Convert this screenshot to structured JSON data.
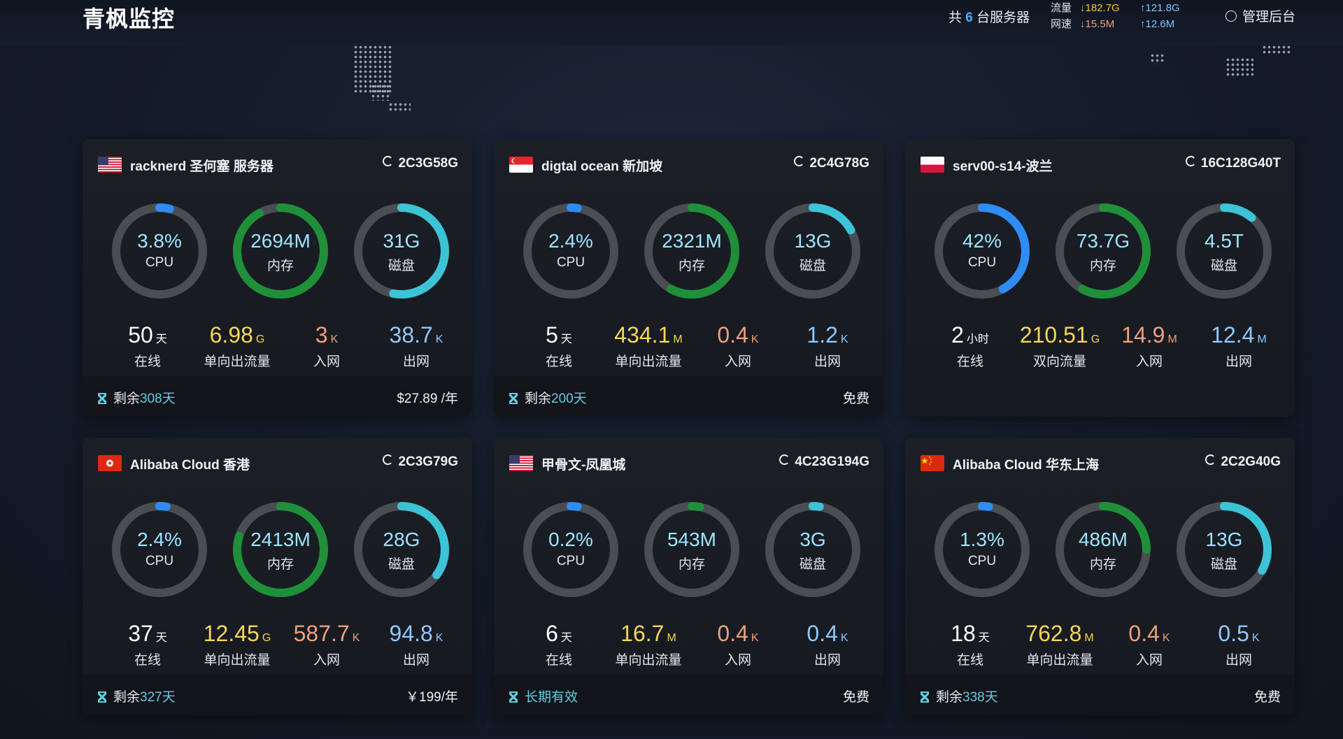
{
  "app": {
    "title": "青枫监控"
  },
  "header": {
    "summary_prefix": "共",
    "server_count": "6",
    "summary_suffix": "台服务器",
    "traffic_label": "流量",
    "traffic_down": "↓182.7G",
    "traffic_up": "↑121.8G",
    "speed_label": "网速",
    "speed_down": "↓15.5M",
    "speed_up": "↑12.6M",
    "admin_label": "管理后台"
  },
  "colors": {
    "cpu": "#2f8cf5",
    "mem": "#1f8f3a",
    "disk": "#3cc3d6",
    "track": "#4a4d52"
  },
  "servers": [
    {
      "flag": "us",
      "title": "racknerd 圣何塞 服务器",
      "spec": "2C3G58G",
      "cpu_value": "3.8%",
      "cpu_label": "CPU",
      "cpu_pct": 3.8,
      "mem_value": "2694M",
      "mem_label": "内存",
      "mem_pct": 92,
      "disk_value": "31G",
      "disk_label": "磁盘",
      "disk_pct": 53,
      "uptime_num": "50",
      "uptime_unit": "天",
      "uptime_label": "在线",
      "traffic_num": "6.98",
      "traffic_unit": "G",
      "traffic_label": "单向出流量",
      "in_num": "3",
      "in_unit": "K",
      "in_label": "入网",
      "out_num": "38.7",
      "out_unit": "K",
      "out_label": "出网",
      "remain_prefix": "剩余",
      "remain_days": "308天",
      "price": "$27.89 /年"
    },
    {
      "flag": "sg",
      "title": "digtal ocean 新加坡",
      "spec": "2C4G78G",
      "cpu_value": "2.4%",
      "cpu_label": "CPU",
      "cpu_pct": 2.4,
      "mem_value": "2321M",
      "mem_label": "内存",
      "mem_pct": 58,
      "disk_value": "13G",
      "disk_label": "磁盘",
      "disk_pct": 17,
      "uptime_num": "5",
      "uptime_unit": "天",
      "uptime_label": "在线",
      "traffic_num": "434.1",
      "traffic_unit": "M",
      "traffic_label": "单向出流量",
      "in_num": "0.4",
      "in_unit": "K",
      "in_label": "入网",
      "out_num": "1.2",
      "out_unit": "K",
      "out_label": "出网",
      "remain_prefix": "剩余",
      "remain_days": "200天",
      "price": "免费"
    },
    {
      "flag": "pl",
      "title": "serv00-s14-波兰",
      "spec": "16C128G40T",
      "cpu_value": "42%",
      "cpu_label": "CPU",
      "cpu_pct": 42,
      "mem_value": "73.7G",
      "mem_label": "内存",
      "mem_pct": 58,
      "disk_value": "4.5T",
      "disk_label": "磁盘",
      "disk_pct": 11,
      "uptime_num": "2",
      "uptime_unit": "小时",
      "uptime_label": "在线",
      "traffic_num": "210.51",
      "traffic_unit": "G",
      "traffic_label": "双向流量",
      "in_num": "14.9",
      "in_unit": "M",
      "in_label": "入网",
      "out_num": "12.4",
      "out_unit": "M",
      "out_label": "出网",
      "remain_prefix": "",
      "remain_days": "",
      "price": ""
    },
    {
      "flag": "hk",
      "title": "Alibaba Cloud 香港",
      "spec": "2C3G79G",
      "cpu_value": "2.4%",
      "cpu_label": "CPU",
      "cpu_pct": 2.4,
      "mem_value": "2413M",
      "mem_label": "内存",
      "mem_pct": 80,
      "disk_value": "28G",
      "disk_label": "磁盘",
      "disk_pct": 35,
      "uptime_num": "37",
      "uptime_unit": "天",
      "uptime_label": "在线",
      "traffic_num": "12.45",
      "traffic_unit": "G",
      "traffic_label": "单向出流量",
      "in_num": "587.7",
      "in_unit": "K",
      "in_label": "入网",
      "out_num": "94.8",
      "out_unit": "K",
      "out_label": "出网",
      "remain_prefix": "剩余",
      "remain_days": "327天",
      "price": "￥199/年"
    },
    {
      "flag": "us",
      "title": "甲骨文-凤凰城",
      "spec": "4C23G194G",
      "cpu_value": "0.2%",
      "cpu_label": "CPU",
      "cpu_pct": 0.2,
      "mem_value": "543M",
      "mem_label": "内存",
      "mem_pct": 3,
      "disk_value": "3G",
      "disk_label": "磁盘",
      "disk_pct": 2,
      "uptime_num": "6",
      "uptime_unit": "天",
      "uptime_label": "在线",
      "traffic_num": "16.7",
      "traffic_unit": "M",
      "traffic_label": "单向出流量",
      "in_num": "0.4",
      "in_unit": "K",
      "in_label": "入网",
      "out_num": "0.4",
      "out_unit": "K",
      "out_label": "出网",
      "remain_prefix": "",
      "remain_days": "长期有效",
      "price": "免费"
    },
    {
      "flag": "cn",
      "title": "Alibaba Cloud 华东上海",
      "spec": "2C2G40G",
      "cpu_value": "1.3%",
      "cpu_label": "CPU",
      "cpu_pct": 1.3,
      "mem_value": "486M",
      "mem_label": "内存",
      "mem_pct": 25,
      "disk_value": "13G",
      "disk_label": "磁盘",
      "disk_pct": 33,
      "uptime_num": "18",
      "uptime_unit": "天",
      "uptime_label": "在线",
      "traffic_num": "762.8",
      "traffic_unit": "M",
      "traffic_label": "单向出流量",
      "in_num": "0.4",
      "in_unit": "K",
      "in_label": "入网",
      "out_num": "0.5",
      "out_unit": "K",
      "out_label": "出网",
      "remain_prefix": "剩余",
      "remain_days": "338天",
      "price": "免费"
    }
  ]
}
